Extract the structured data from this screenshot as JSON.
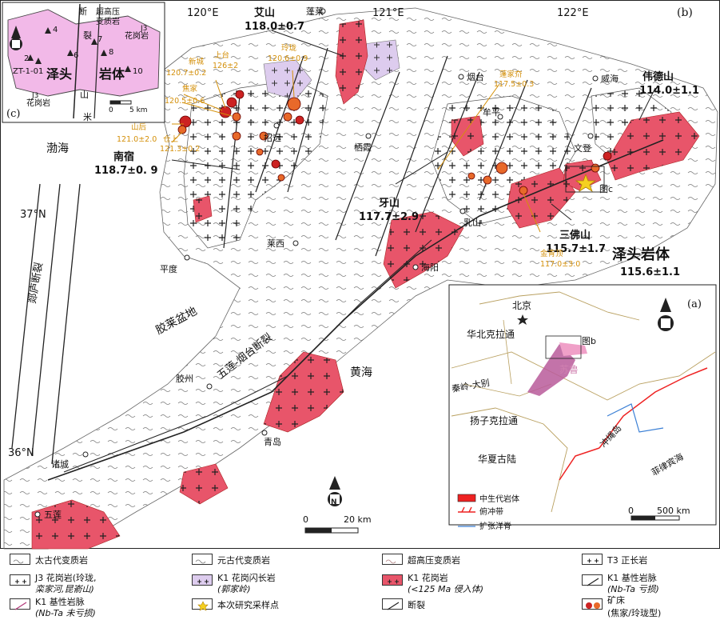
{
  "panel_b": {
    "label": "(b)",
    "longitudes": [
      "120°E",
      "121°E",
      "122°E"
    ],
    "latitudes": [
      "37°N",
      "36°N"
    ],
    "seas": [
      "渤海",
      "黄海"
    ],
    "basin": "胶莱盆地",
    "faults": [
      "郯庐断裂",
      "五莲-烟台断裂"
    ],
    "cities": [
      "蓬莱",
      "烟台",
      "威海",
      "招远",
      "栖霞",
      "牟平",
      "文登",
      "乳山",
      "海阳",
      "莱西",
      "平度",
      "胶州",
      "青岛",
      "诸城",
      "五莲"
    ],
    "plutons": [
      {
        "name": "艾山",
        "age": "118.0±0.7"
      },
      {
        "name": "南宿",
        "age": "118.7±0. 9"
      },
      {
        "name": "牙山",
        "age": "117.7±2.9"
      },
      {
        "name": "三佛山",
        "age": "115.7±1.7"
      },
      {
        "name": "伟德山",
        "age": "114.0±1.1"
      },
      {
        "name": "泽头岩体",
        "age": "115.6±1.1"
      }
    ],
    "deposits": [
      {
        "name": "新城",
        "age": "120.7±0.2"
      },
      {
        "name": "上台",
        "age": "126±2"
      },
      {
        "name": "焦家",
        "age": "120.5±0.6"
      },
      {
        "name": "玲珑",
        "age": "120.6±0.9"
      },
      {
        "name": "山后",
        "age": "121.0±2.0"
      },
      {
        "name": "仓上",
        "age": "121.3±0.2"
      },
      {
        "name": "蓬家夼",
        "age": "117.5±0.3"
      },
      {
        "name": "金青顶",
        "age": "117.0±3.0"
      }
    ],
    "fig_ref": "图c",
    "scale": [
      "0",
      "20 km"
    ],
    "north": "N"
  },
  "panel_c": {
    "label": "(c)",
    "pluton": "泽头",
    "pluton2": "岩体",
    "rock_lbls": [
      "超高压",
      "变质岩",
      "花岗岩",
      "J3",
      "花岗岩",
      "J3"
    ],
    "fault": [
      "断",
      "裂"
    ],
    "fault2": [
      "米",
      "山"
    ],
    "samples": [
      "4",
      "2",
      "ZT-1-01",
      "6",
      "7",
      "8",
      "10"
    ],
    "scale": [
      "0",
      "5 km"
    ]
  },
  "panel_a": {
    "label": "(a)",
    "places": [
      "北京",
      "华北克拉通",
      "秦岭-大别",
      "苏鲁",
      "扬子克拉通",
      "华夏古陆",
      "冲绳岛",
      "菲律宾海"
    ],
    "fig_ref": "图b",
    "legend": [
      "中生代岩体",
      "俯冲带",
      "扩张洋脊"
    ],
    "scale": [
      "0",
      "500 km"
    ]
  },
  "legend": [
    {
      "text": "太古代变质岩"
    },
    {
      "text": "元古代变质岩"
    },
    {
      "text": "超高压变质岩"
    },
    {
      "text": "T3 正长岩"
    },
    {
      "text": "J3 花岗岩(玲珑,",
      "text2": "栾家河,昆嵛山)"
    },
    {
      "text": "K1 花岗闪长岩",
      "text2": "(郭家岭)"
    },
    {
      "text": "K1 花岗岩",
      "text2": "(<125 Ma 侵入体)"
    },
    {
      "text": "K1 基性岩脉",
      "text2": "(Nb-Ta 亏损)"
    },
    {
      "text": "K1 基性岩脉",
      "text2": "(Nb-Ta 未亏损)"
    },
    {
      "text": "本次研究采样点"
    },
    {
      "text": "断裂"
    },
    {
      "text": "矿床",
      "text2": "(焦家/玲珑型)"
    }
  ],
  "colors": {
    "granite_k1": "#e8556a",
    "granodiorite": "#ddccee",
    "deposit": "#e8692a",
    "deposit_dark": "#cc2222",
    "pluton_c": "#f2b9e8"
  }
}
